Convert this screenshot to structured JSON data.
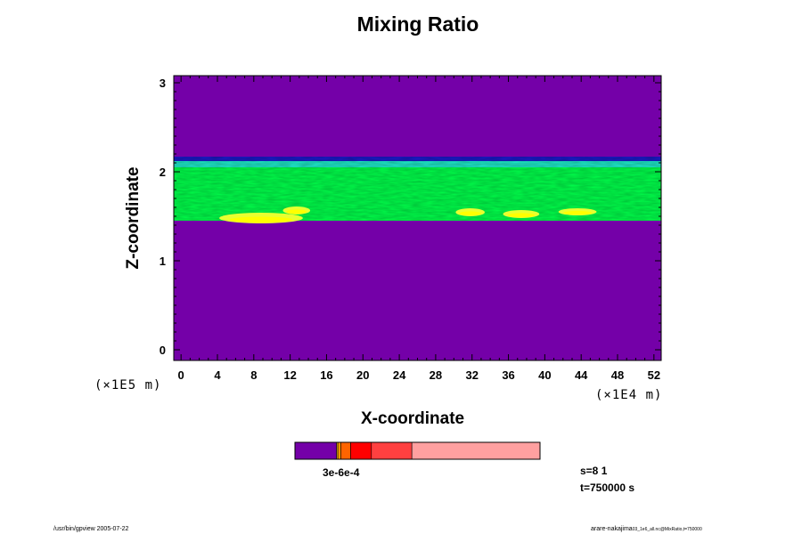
{
  "chart_data": {
    "type": "heatmap",
    "title": "Mixing Ratio",
    "xlabel": "X-coordinate",
    "ylabel": "Z-coordinate",
    "x_unit": "(×1E4 m)",
    "y_unit": "(×1E5 m)",
    "xlim": [
      -0.8,
      52.8
    ],
    "ylim": [
      -0.12,
      3.08
    ],
    "x_ticks": [
      0,
      4,
      8,
      12,
      16,
      20,
      24,
      28,
      32,
      36,
      40,
      44,
      48,
      52
    ],
    "y_ticks": [
      0,
      1,
      2,
      3
    ],
    "background_color": "#7400a8",
    "layers": [
      {
        "z_bottom": 1.45,
        "z_top": 2.17,
        "color": "#00ff4a"
      },
      {
        "z_bottom": 2.05,
        "z_top": 2.15,
        "color": "#1ee8c8"
      },
      {
        "z_bottom": 2.12,
        "z_top": 2.17,
        "color": "#1a1ac8"
      }
    ],
    "yellow_patches": [
      {
        "x": 4.2,
        "z": 1.42,
        "w": 9.2,
        "h": 0.12
      },
      {
        "x": 11.2,
        "z": 1.52,
        "w": 3.0,
        "h": 0.09
      },
      {
        "x": 30.2,
        "z": 1.5,
        "w": 3.2,
        "h": 0.09
      },
      {
        "x": 35.4,
        "z": 1.48,
        "w": 4.0,
        "h": 0.09
      },
      {
        "x": 41.5,
        "z": 1.51,
        "w": 4.2,
        "h": 0.08
      }
    ],
    "colorbar": {
      "label": "3e-6e-4",
      "segments": [
        {
          "color": "#7400a8",
          "width": 0.17
        },
        {
          "color": "#ffd200",
          "width": 0.005
        },
        {
          "color": "#ff9a00",
          "width": 0.012
        },
        {
          "color": "#ff6400",
          "width": 0.04
        },
        {
          "color": "#ff0000",
          "width": 0.085
        },
        {
          "color": "#ff4040",
          "width": 0.165
        },
        {
          "color": "#ffa0a0",
          "width": 0.523
        }
      ]
    }
  },
  "info": {
    "s": "s=8 1",
    "t": "t=750000 s"
  },
  "footer": {
    "left": "/usr/bin/gpview 2005-07-22",
    "right_main": "arare-nakajima",
    "right_sub": "03_1e6_all.nc@MixRatio,t=750000"
  }
}
